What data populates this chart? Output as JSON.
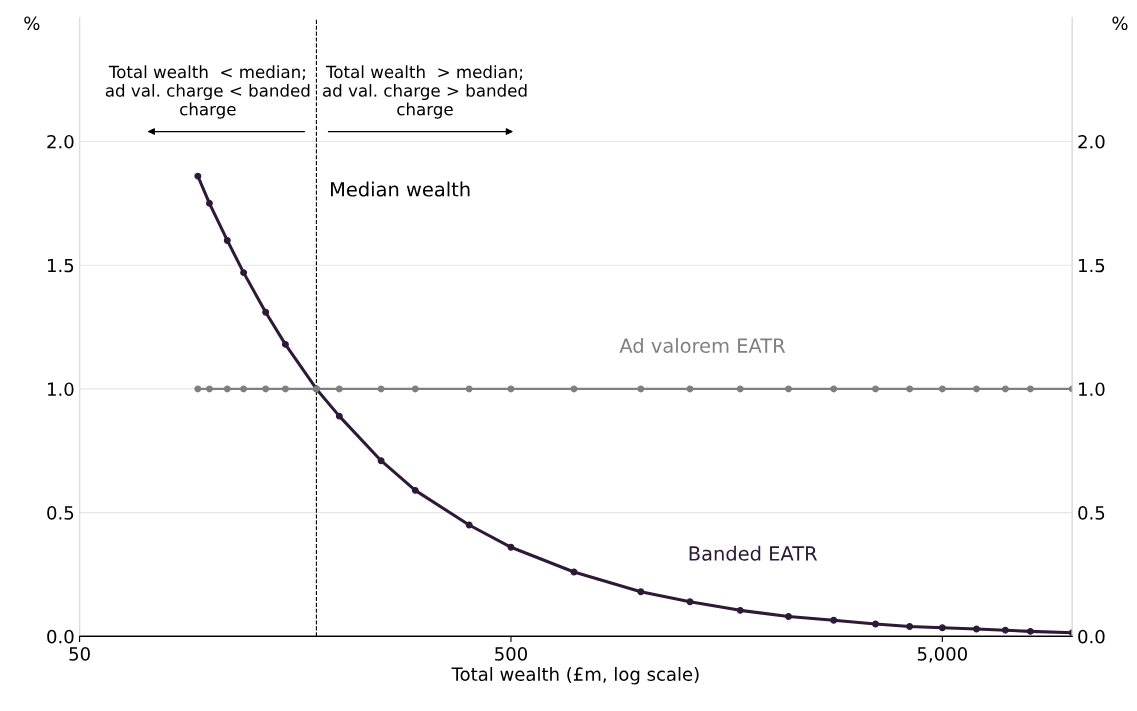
{
  "chart_data": {
    "type": "line",
    "xlabel": "Total wealth (£m, log scale)",
    "ylabel": "%",
    "y2label": "%",
    "log": "x",
    "xlim": [
      50,
      10000
    ],
    "xticks": [
      50,
      500,
      {
        "value": 5000,
        "label": "5,000"
      }
    ],
    "ylim": [
      0,
      2.5
    ],
    "yticks": [
      {
        "value": 0,
        "label": "0.0"
      },
      {
        "value": 0.5,
        "label": "0.5"
      },
      {
        "value": 1,
        "label": "1.0"
      },
      {
        "value": 1.5,
        "label": "1.5"
      },
      {
        "value": 2,
        "label": "2.0"
      }
    ],
    "y2lim": [
      0,
      2.5
    ],
    "y2ticks": [
      {
        "value": 0,
        "label": "0.0"
      },
      {
        "value": 0.5,
        "label": "0.5"
      },
      {
        "value": 1,
        "label": "1.0"
      },
      {
        "value": 1.5,
        "label": "1.5"
      },
      {
        "value": 2,
        "label": "2.0"
      }
    ],
    "grid": "y",
    "marker": "circle",
    "legend": false,
    "series": [
      {
        "name": "Ad valorem EATR",
        "color": "#7f7f7f",
        "x": [
          94,
          100,
          110,
          120,
          135,
          150,
          177,
          200,
          250,
          300,
          400,
          500,
          700,
          1000,
          1300,
          1700,
          2200,
          2800,
          3500,
          4200,
          5000,
          6000,
          7000,
          8000,
          10000
        ],
        "values": [
          1,
          1,
          1,
          1,
          1,
          1,
          1,
          1,
          1,
          1,
          1,
          1,
          1,
          1,
          1,
          1,
          1,
          1,
          1,
          1,
          1,
          1,
          1,
          1,
          1
        ]
      },
      {
        "name": "Banded EATR",
        "color": "#2e1a36",
        "x": [
          94,
          100,
          110,
          120,
          135,
          150,
          177,
          200,
          250,
          300,
          400,
          500,
          700,
          1000,
          1300,
          1700,
          2200,
          2800,
          3500,
          4200,
          5000,
          6000,
          7000,
          8000,
          10000
        ],
        "values": [
          1.86,
          1.75,
          1.6,
          1.47,
          1.31,
          1.18,
          1.0,
          0.89,
          0.71,
          0.59,
          0.45,
          0.36,
          0.26,
          0.18,
          0.14,
          0.105,
          0.08,
          0.065,
          0.05,
          0.04,
          0.035,
          0.03,
          0.025,
          0.02,
          0.015
        ]
      }
    ],
    "ref_lines": [
      {
        "axis": "x",
        "value": 177,
        "label": "Median wealth",
        "color": "#000000",
        "line_style": "dashed"
      }
    ],
    "annotations": [
      "Total wealth  < median;\nad val. charge < banded\ncharge",
      "Total wealth  > median;\nad val. charge > banded\ncharge"
    ]
  }
}
